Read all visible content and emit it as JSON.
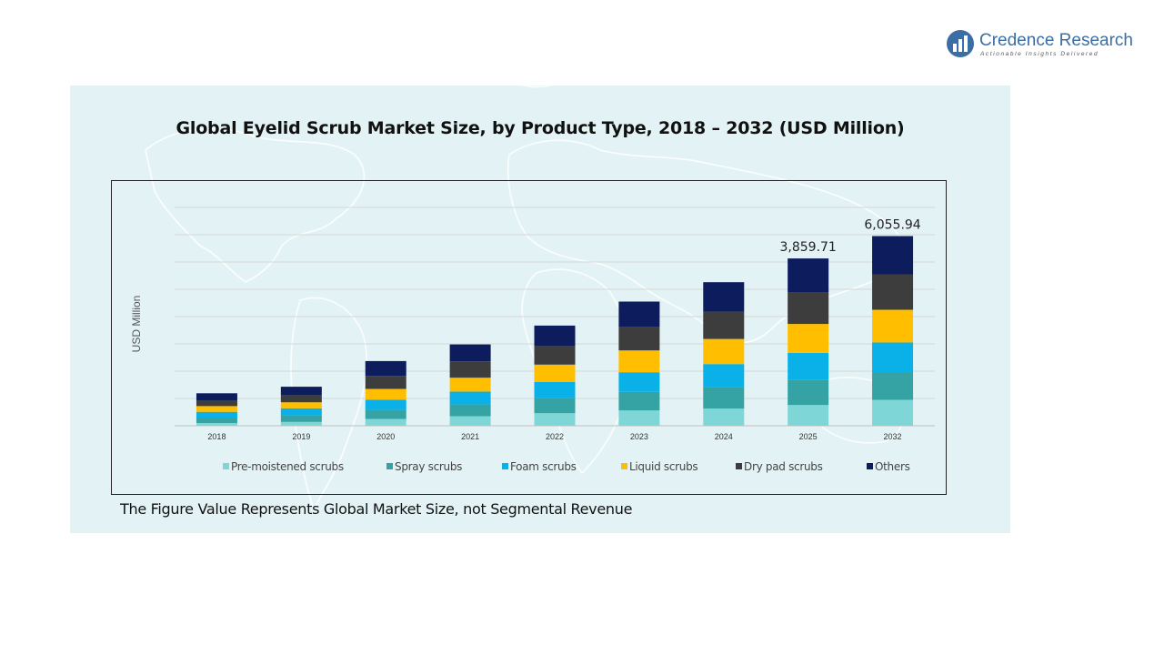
{
  "brand": {
    "name": "Credence Research",
    "tagline": "Actionable Insights Delivered"
  },
  "footnote": "The Figure Value Represents Global Market Size, not Segmental Revenue",
  "colors": {
    "panel_bg": "#e3f3f5",
    "gridline": "#d6d6d6",
    "brand": "#3a6ea5"
  },
  "chart_data": {
    "type": "bar",
    "stacked": true,
    "title": "Global Eyelid Scrub Market Size, by Product Type, 2018 – 2032 (USD Million)",
    "ylabel": "USD Million",
    "xlabel": "",
    "categories": [
      "2018",
      "2019",
      "2020",
      "2021",
      "2022",
      "2023",
      "2024",
      "2025",
      "2032"
    ],
    "ylim": [
      0,
      8000
    ],
    "grid": true,
    "legend_position": "bottom",
    "series": [
      {
        "name": "Pre-moistened scrubs",
        "color": "#7fd6d6",
        "values": [
          100,
          140,
          250,
          350,
          460,
          560,
          630,
          760,
          950
        ]
      },
      {
        "name": "Spray scrubs",
        "color": "#35a3a3",
        "values": [
          200,
          240,
          330,
          430,
          560,
          680,
          790,
          930,
          1000
        ]
      },
      {
        "name": "Foam scrubs",
        "color": "#0ab0e8",
        "values": [
          210,
          260,
          370,
          470,
          580,
          720,
          840,
          980,
          1100
        ]
      },
      {
        "name": "Liquid scrubs",
        "color": "#ffbf00",
        "values": [
          210,
          220,
          400,
          510,
          640,
          800,
          920,
          1060,
          1200
        ]
      },
      {
        "name": "Dry pad scrubs",
        "color": "#3d3d3d",
        "values": [
          200,
          260,
          480,
          600,
          680,
          860,
          1000,
          1170,
          1300
        ]
      },
      {
        "name": "Others",
        "color": "#0d1c5c",
        "values": [
          270,
          310,
          540,
          620,
          750,
          930,
          1080,
          1230,
          1400
        ]
      }
    ],
    "data_labels": [
      {
        "category": "2025",
        "text": "3,859.71"
      },
      {
        "category": "2032",
        "text": "6,055.94"
      }
    ]
  }
}
